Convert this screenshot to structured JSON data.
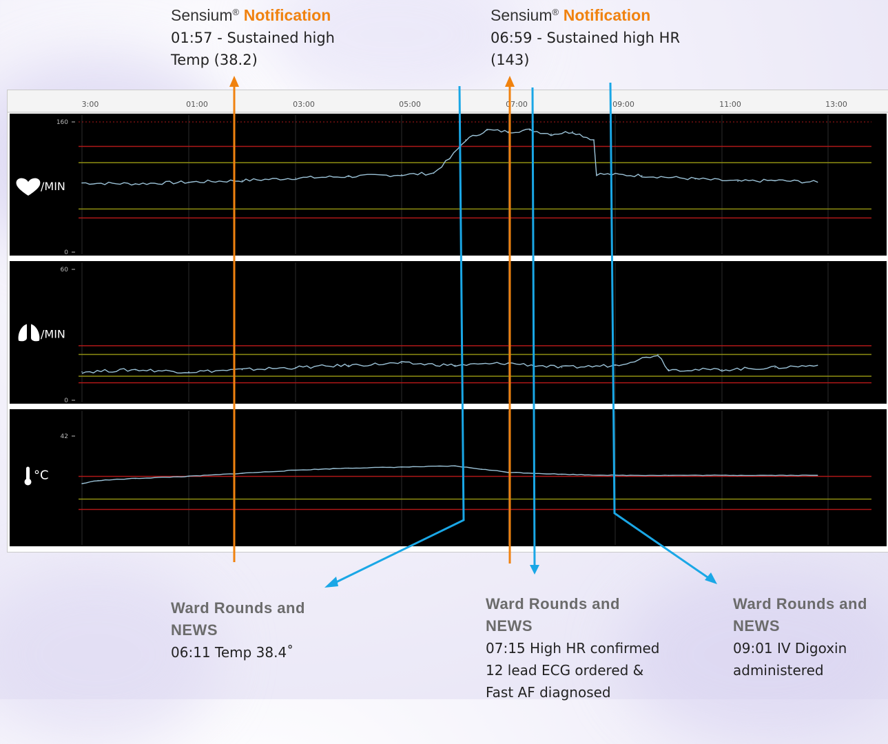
{
  "notifications": [
    {
      "brand": "Sensium",
      "reg": "®",
      "label": "Notification",
      "line1": "01:57 - Sustained high",
      "line2": "Temp (38.2)"
    },
    {
      "brand": "Sensium",
      "reg": "®",
      "label": "Notification",
      "line1": "06:59 - Sustained high HR",
      "line2": "(143)"
    }
  ],
  "ward_rounds": [
    {
      "title1": "Ward Rounds and",
      "title2": "NEWS",
      "lines": [
        "06:11 Temp 38.4˚"
      ]
    },
    {
      "title1": "Ward Rounds and",
      "title2": "NEWS",
      "lines": [
        "07:15 High HR confirmed",
        "12 lead ECG ordered &",
        "Fast AF diagnosed"
      ]
    },
    {
      "title1": "Ward Rounds and",
      "title2": "NEWS",
      "lines": [
        "09:01 IV Digoxin",
        "administered"
      ]
    }
  ],
  "colors": {
    "orange_arrow": "#f0820f",
    "blue_arrow": "#1aa7e6",
    "trace": "#9cc3d8",
    "red_threshold": "#b01818",
    "yellow_threshold": "#8f8f12",
    "panel_bg": "#000000"
  },
  "chart_data": {
    "type": "line",
    "x_ticks": [
      "3:00",
      "01:00",
      "03:00",
      "05:00",
      "07:00",
      "09:00",
      "11:00",
      "13:00"
    ],
    "panels": [
      {
        "name": "heart-rate",
        "icon": "heart-icon",
        "unit": "/MIN",
        "ylim": [
          0,
          160
        ],
        "y_ticks": [
          "160",
          "0"
        ],
        "thresholds": {
          "red": [
            130,
            42
          ],
          "yellow": [
            110,
            53
          ]
        },
        "series": [
          {
            "x": 0,
            "y": 85
          },
          {
            "x": 1,
            "y": 84
          },
          {
            "x": 2,
            "y": 86
          },
          {
            "x": 3,
            "y": 88
          },
          {
            "x": 4,
            "y": 91
          },
          {
            "x": 5,
            "y": 93
          },
          {
            "x": 6,
            "y": 95
          },
          {
            "x": 6.6,
            "y": 97
          },
          {
            "x": 6.9,
            "y": 115
          },
          {
            "x": 7.2,
            "y": 138
          },
          {
            "x": 7.6,
            "y": 150
          },
          {
            "x": 8.0,
            "y": 148
          },
          {
            "x": 8.4,
            "y": 150
          },
          {
            "x": 8.8,
            "y": 145
          },
          {
            "x": 9.2,
            "y": 148
          },
          {
            "x": 9.6,
            "y": 138
          },
          {
            "x": 9.65,
            "y": 96
          },
          {
            "x": 10.5,
            "y": 94
          },
          {
            "x": 11.5,
            "y": 90
          },
          {
            "x": 12.3,
            "y": 87
          },
          {
            "x": 13.0,
            "y": 88
          },
          {
            "x": 13.8,
            "y": 86
          }
        ]
      },
      {
        "name": "respiratory-rate",
        "icon": "lungs-icon",
        "unit": "/MIN",
        "ylim": [
          0,
          60
        ],
        "y_ticks": [
          "60",
          "0"
        ],
        "thresholds": {
          "red": [
            25,
            8
          ],
          "yellow": [
            21,
            11
          ]
        },
        "series": [
          {
            "x": 0,
            "y": 13
          },
          {
            "x": 1,
            "y": 14
          },
          {
            "x": 2,
            "y": 13
          },
          {
            "x": 3,
            "y": 14
          },
          {
            "x": 4,
            "y": 15
          },
          {
            "x": 5,
            "y": 16
          },
          {
            "x": 6,
            "y": 17
          },
          {
            "x": 7,
            "y": 16
          },
          {
            "x": 8,
            "y": 17
          },
          {
            "x": 9,
            "y": 15
          },
          {
            "x": 10,
            "y": 16
          },
          {
            "x": 10.8,
            "y": 21
          },
          {
            "x": 11,
            "y": 14
          },
          {
            "x": 12,
            "y": 14
          },
          {
            "x": 13,
            "y": 15
          },
          {
            "x": 13.8,
            "y": 16
          }
        ]
      },
      {
        "name": "temperature",
        "icon": "thermometer-icon",
        "unit": "°C",
        "ylim": [
          30,
          42
        ],
        "y_ticks": [
          "42"
        ],
        "thresholds": {
          "red": [
            38.1,
            34.9
          ],
          "yellow": [
            35.9
          ]
        },
        "series": [
          {
            "x": 0,
            "y": 37.4
          },
          {
            "x": 0.3,
            "y": 37.7
          },
          {
            "x": 1,
            "y": 37.9
          },
          {
            "x": 2,
            "y": 38.1
          },
          {
            "x": 3,
            "y": 38.4
          },
          {
            "x": 4,
            "y": 38.7
          },
          {
            "x": 5,
            "y": 38.9
          },
          {
            "x": 6,
            "y": 39.0
          },
          {
            "x": 7,
            "y": 39.1
          },
          {
            "x": 7.5,
            "y": 38.8
          },
          {
            "x": 8,
            "y": 38.5
          },
          {
            "x": 9,
            "y": 38.3
          },
          {
            "x": 10,
            "y": 38.2
          },
          {
            "x": 11,
            "y": 38.2
          },
          {
            "x": 12,
            "y": 38.2
          },
          {
            "x": 13.8,
            "y": 38.2
          }
        ]
      }
    ]
  }
}
